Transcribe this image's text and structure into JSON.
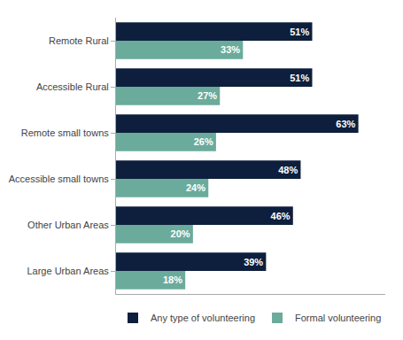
{
  "chart_data": {
    "type": "bar",
    "orientation": "horizontal",
    "categories": [
      "Remote Rural",
      "Accessible Rural",
      "Remote small towns",
      "Accessible small towns",
      "Other Urban Areas",
      "Large Urban Areas"
    ],
    "series": [
      {
        "name": "Any type of volunteering",
        "color": "#0d1f3c",
        "values": [
          51,
          51,
          63,
          48,
          46,
          39
        ],
        "value_labels": [
          "51%",
          "51%",
          "63%",
          "48%",
          "46%",
          "39%"
        ]
      },
      {
        "name": "Formal volunteering",
        "color": "#6aab9c",
        "values": [
          33,
          27,
          26,
          24,
          20,
          18
        ],
        "value_labels": [
          "33%",
          "27%",
          "26%",
          "24%",
          "20%",
          "18%"
        ]
      }
    ],
    "xlim": [
      0,
      70
    ],
    "data_labels": true,
    "tick_labels": "y",
    "grid": false,
    "legend": "bottom"
  }
}
